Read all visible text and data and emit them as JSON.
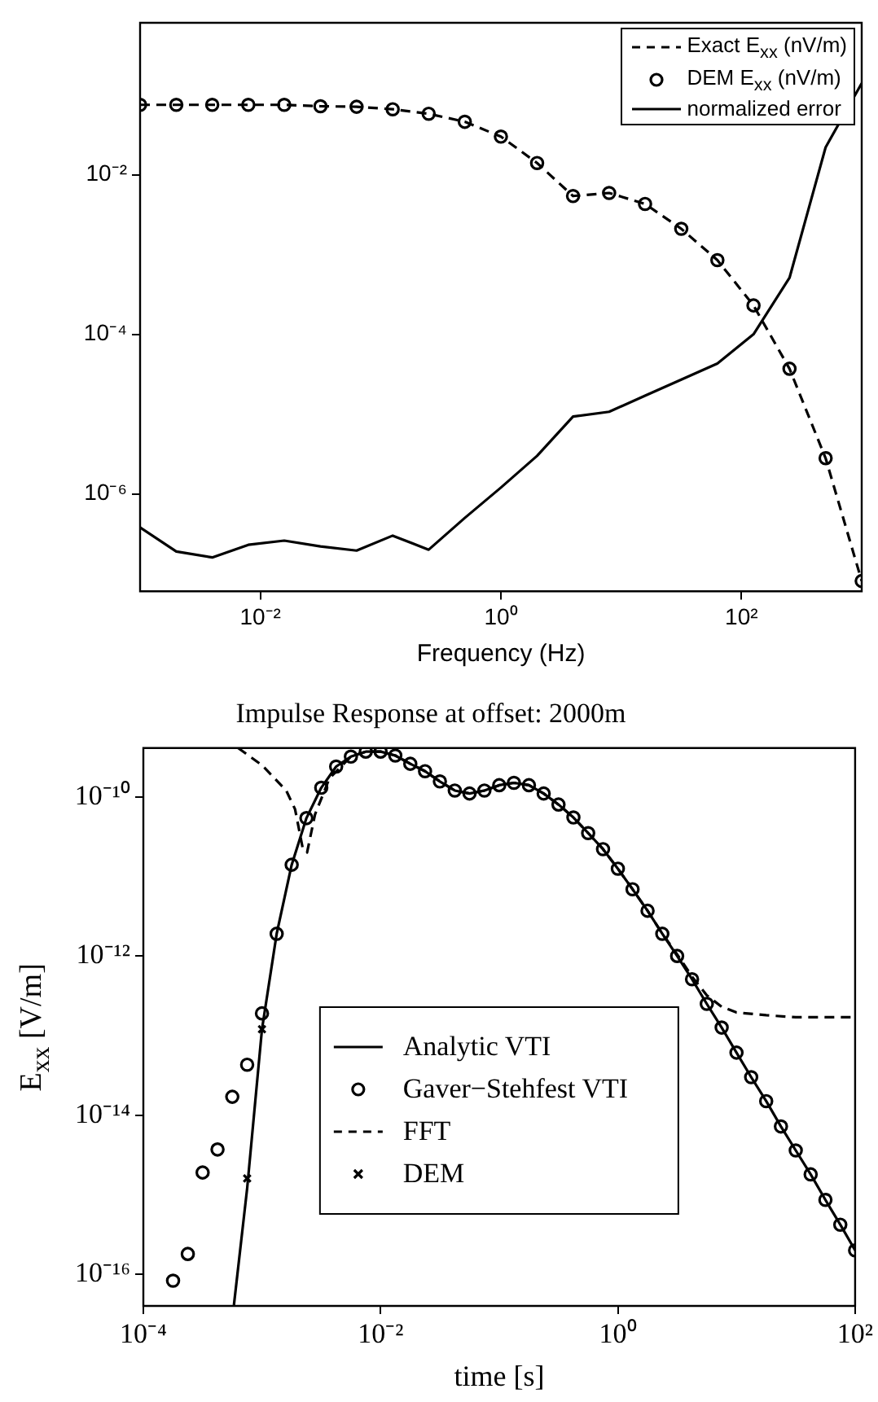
{
  "chart_data": [
    {
      "type": "line",
      "xlabel": "Frequency (Hz)",
      "log": "xy",
      "legend": "top right",
      "xlim": [
        0.001,
        1000
      ],
      "ylim": [
        6e-08,
        0.8
      ],
      "xticks": [
        {
          "value": 0.01,
          "label": "10⁻²"
        },
        {
          "value": 1,
          "label": "10⁰"
        },
        {
          "value": 100,
          "label": "10²"
        }
      ],
      "yticks": [
        {
          "value": 1e-06,
          "label": "10⁻⁶"
        },
        {
          "value": 0.0001,
          "label": "10⁻⁴"
        },
        {
          "value": 0.01,
          "label": "10⁻²"
        }
      ],
      "x": [
        0.001,
        0.002,
        0.00398,
        0.00794,
        0.0158,
        0.0316,
        0.0631,
        0.126,
        0.251,
        0.501,
        1,
        2,
        3.98,
        7.94,
        15.8,
        31.6,
        63.1,
        126,
        251,
        501,
        1000
      ],
      "series": [
        {
          "name": "Exact E$_{xx}$ (nV/m)",
          "type": "line",
          "line_style": "dashed",
          "color": "#000000",
          "values": [
            0.075,
            0.075,
            0.075,
            0.075,
            0.075,
            0.072,
            0.071,
            0.066,
            0.058,
            0.046,
            0.03,
            0.014,
            0.0054,
            0.0059,
            0.0043,
            0.0021,
            0.00085,
            0.00023,
            3.7e-05,
            2.8e-06,
            8.1e-08
          ]
        },
        {
          "name": "DEM E$_{xx}$ (nV/m)",
          "type": "scatter",
          "marker": "circle",
          "color": "#000000",
          "values": [
            0.075,
            0.075,
            0.075,
            0.075,
            0.075,
            0.072,
            0.071,
            0.066,
            0.058,
            0.046,
            0.03,
            0.014,
            0.0054,
            0.0059,
            0.0043,
            0.0021,
            0.00085,
            0.00023,
            3.7e-05,
            2.8e-06,
            8.1e-08
          ]
        },
        {
          "name": "normalized error",
          "type": "line",
          "line_style": "solid",
          "color": "#000000",
          "values": [
            3.8e-07,
            1.9e-07,
            1.6e-07,
            2.3e-07,
            2.6e-07,
            2.2e-07,
            1.95e-07,
            3e-07,
            2e-07,
            5e-07,
            1.2e-06,
            3e-06,
            9.3e-06,
            1.07e-05,
            1.7e-05,
            2.7e-05,
            4.3e-05,
            0.0001,
            0.00051,
            0.022,
            0.14
          ]
        }
      ]
    },
    {
      "type": "line",
      "title": "Impulse Response at offset: 2000m",
      "xlabel": "time [s]",
      "ylabel": "E$_{xx}$ [V/m]",
      "log": "xy",
      "legend": "bottom",
      "xlim": [
        0.0001,
        100
      ],
      "ylim": [
        4e-17,
        4.1e-10
      ],
      "xticks": [
        {
          "value": 0.0001,
          "label": "10⁻⁴"
        },
        {
          "value": 0.01,
          "label": "10⁻²"
        },
        {
          "value": 1,
          "label": "10⁰"
        },
        {
          "value": 100,
          "label": "10²"
        }
      ],
      "yticks": [
        {
          "value": 1e-16,
          "label": "10⁻¹⁶"
        },
        {
          "value": 1e-14,
          "label": "10⁻¹⁴"
        },
        {
          "value": 1e-12,
          "label": "10⁻¹²"
        },
        {
          "value": 1e-10,
          "label": "10⁻¹⁰"
        }
      ],
      "series": [
        {
          "name": "Analytic VTI",
          "type": "line",
          "line_style": "solid",
          "color": "#000000",
          "x": [
            0.00058,
            0.00075,
            0.001,
            0.00133,
            0.00178,
            0.00237,
            0.00316,
            0.00422,
            0.00562,
            0.0075,
            0.01,
            0.0133,
            0.0178,
            0.0237,
            0.0316,
            0.0422,
            0.0562,
            0.075,
            0.1,
            0.133,
            0.178,
            0.237,
            0.316,
            0.422,
            0.562,
            0.75,
            1,
            1.33,
            1.78,
            2.37,
            3.16,
            4.22,
            5.62,
            7.5,
            10,
            13.3,
            17.8,
            23.7,
            31.6,
            42.2,
            56.2,
            75,
            100
          ],
          "values": [
            4.1e-17,
            1.2e-15,
            1.2e-13,
            1.9e-12,
            1.4e-11,
            5.4e-11,
            1.3e-10,
            2.4e-10,
            3.2e-10,
            3.7e-10,
            3.7e-10,
            3.3e-10,
            2.6e-10,
            2.1e-10,
            1.56e-10,
            1.2e-10,
            1.1e-10,
            1.2e-10,
            1.4e-10,
            1.5e-10,
            1.4e-10,
            1.1e-10,
            8e-11,
            5.5e-11,
            3.5e-11,
            2.2e-11,
            1.25e-11,
            6.9e-12,
            3.7e-12,
            1.9e-12,
            1e-12,
            5.1e-13,
            2.5e-13,
            1.26e-13,
            6.1e-14,
            3e-14,
            1.5e-14,
            7.2e-15,
            3.6e-15,
            1.8e-15,
            8.6e-16,
            4.2e-16,
            2e-16
          ]
        },
        {
          "name": "Gaver−Stehfest VTI",
          "type": "scatter",
          "marker": "circle",
          "color": "#000000",
          "x": [
            0.000178,
            0.000237,
            0.000316,
            0.000422,
            0.000562,
            0.00075,
            0.001,
            0.00133,
            0.00178,
            0.00237,
            0.00316,
            0.00422,
            0.00562,
            0.0075,
            0.01,
            0.0133,
            0.0178,
            0.0237,
            0.0316,
            0.0422,
            0.0562,
            0.075,
            0.1,
            0.133,
            0.178,
            0.237,
            0.316,
            0.422,
            0.562,
            0.75,
            1,
            1.33,
            1.78,
            2.37,
            3.16,
            4.22,
            5.62,
            7.5,
            10,
            13.3,
            17.8,
            23.7,
            31.6,
            42.2,
            56.2,
            75,
            100
          ],
          "values": [
            8.3e-17,
            1.8e-16,
            1.9e-15,
            3.7e-15,
            1.7e-14,
            4.3e-14,
            1.9e-13,
            1.9e-12,
            1.4e-11,
            5.4e-11,
            1.3e-10,
            2.4e-10,
            3.2e-10,
            3.7e-10,
            3.7e-10,
            3.3e-10,
            2.6e-10,
            2.1e-10,
            1.56e-10,
            1.2e-10,
            1.1e-10,
            1.2e-10,
            1.4e-10,
            1.5e-10,
            1.4e-10,
            1.1e-10,
            8e-11,
            5.5e-11,
            3.5e-11,
            2.2e-11,
            1.25e-11,
            6.9e-12,
            3.7e-12,
            1.9e-12,
            1e-12,
            5.1e-13,
            2.5e-13,
            1.26e-13,
            6.1e-14,
            3e-14,
            1.5e-14,
            7.2e-15,
            3.6e-15,
            1.8e-15,
            8.6e-16,
            4.2e-16,
            2e-16
          ]
        },
        {
          "name": "FFT",
          "type": "line",
          "line_style": "dashed",
          "color": "#000000",
          "x": [
            0.00063,
            0.001,
            0.0016,
            0.0019,
            0.0022,
            0.0024,
            0.0028,
            0.0037,
            0.00562,
            0.0075,
            0.01,
            0.0133,
            0.0178,
            0.0237,
            0.0316,
            0.0422,
            0.0562,
            0.075,
            0.1,
            0.133,
            0.178,
            0.237,
            0.316,
            0.422,
            0.562,
            0.75,
            1,
            1.33,
            1.78,
            2.37,
            3.16,
            4.22,
            5.62,
            7.5,
            10,
            17.8,
            31.6,
            100
          ],
          "values": [
            4.1e-10,
            2.5e-10,
            1.2e-10,
            7e-11,
            2.3e-11,
            2e-11,
            6e-11,
            1.7e-10,
            3.2e-10,
            3.7e-10,
            3.7e-10,
            3.3e-10,
            2.6e-10,
            2.1e-10,
            1.56e-10,
            1.2e-10,
            1.1e-10,
            1.2e-10,
            1.4e-10,
            1.5e-10,
            1.4e-10,
            1.1e-10,
            8e-11,
            5.5e-11,
            3.5e-11,
            2.2e-11,
            1.25e-11,
            6.9e-12,
            3.7e-12,
            1.9e-12,
            1.05e-12,
            5.5e-13,
            3.2e-13,
            2.3e-13,
            1.95e-13,
            1.8e-13,
            1.7e-13,
            1.7e-13
          ]
        },
        {
          "name": "DEM",
          "type": "scatter",
          "marker": "cross",
          "color": "#000000",
          "x": [
            0.00075,
            0.001
          ],
          "values": [
            1.6e-15,
            1.2e-13
          ]
        }
      ]
    }
  ]
}
